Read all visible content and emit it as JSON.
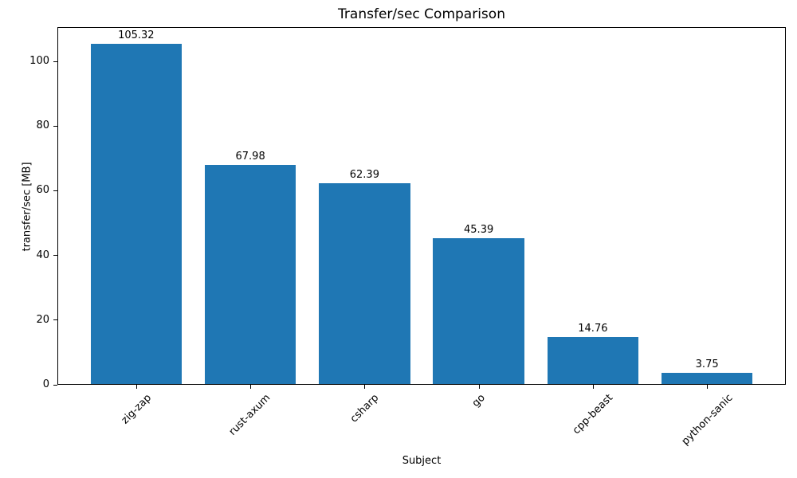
{
  "chart_data": {
    "type": "bar",
    "title": "Transfer/sec Comparison",
    "xlabel": "Subject",
    "ylabel": "transfer/sec [MB]",
    "categories": [
      "zig-zap",
      "rust-axum",
      "csharp",
      "go",
      "cpp-beast",
      "python-sanic"
    ],
    "values": [
      105.32,
      67.98,
      62.39,
      45.39,
      14.76,
      3.75
    ],
    "bar_labels": [
      "105.32",
      "67.98",
      "62.39",
      "45.39",
      "14.76",
      "3.75"
    ],
    "y_ticks": [
      0,
      20,
      40,
      60,
      80,
      100
    ],
    "ylim": [
      0,
      110.6
    ],
    "x_tick_rotation": 45,
    "bar_color": "#1f77b4",
    "text_color": "#000000",
    "grid": false,
    "legend": null
  }
}
